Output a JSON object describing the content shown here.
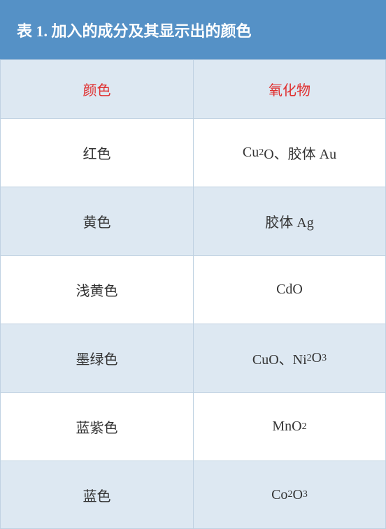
{
  "table": {
    "title": "表 1. 加入的成分及其显示出的颜色",
    "columns": [
      "颜色",
      "氧化物"
    ],
    "header_text_color": "#e03030",
    "header_bg_color": "#dde8f2",
    "title_bg_color": "#5591c6",
    "title_text_color": "#ffffff",
    "border_color": "#c0d2e2",
    "row_alt_bg": "#dde8f2",
    "row_bg": "#ffffff",
    "body_text_color": "#333333",
    "rows": [
      {
        "color": "红色",
        "oxide_html": "Cu<sub>2</sub>O、胶体 Au"
      },
      {
        "color": "黄色",
        "oxide_html": "胶体 Ag"
      },
      {
        "color": "浅黄色",
        "oxide_html": "CdO"
      },
      {
        "color": "墨绿色",
        "oxide_html": "CuO、Ni<sub>2</sub>O<sub>3</sub>"
      },
      {
        "color": "蓝紫色",
        "oxide_html": "MnO<sub>2</sub>"
      },
      {
        "color": "蓝色",
        "oxide_html": "Co<sub>2</sub>O<sub>3</sub>"
      }
    ]
  }
}
